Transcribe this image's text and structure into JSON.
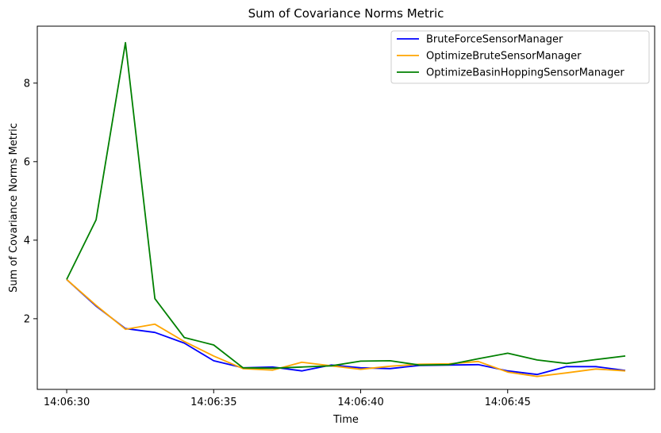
{
  "chart_data": {
    "type": "line",
    "title": "Sum of Covariance Norms Metric",
    "xlabel": "Time",
    "ylabel": "Sum of Covariance Norms Metric",
    "x": [
      "14:06:30",
      "14:06:31",
      "14:06:32",
      "14:06:33",
      "14:06:34",
      "14:06:35",
      "14:06:36",
      "14:06:37",
      "14:06:38",
      "14:06:39",
      "14:06:40",
      "14:06:41",
      "14:06:42",
      "14:06:43",
      "14:06:44",
      "14:06:45",
      "14:06:46",
      "14:06:47",
      "14:06:48",
      "14:06:49"
    ],
    "xticks": [
      "14:06:30",
      "14:06:35",
      "14:06:40",
      "14:06:45"
    ],
    "xlim": [
      "14:06:29",
      "14:06:50"
    ],
    "yticks": [
      2,
      4,
      6,
      8
    ],
    "ylim": [
      0.2,
      9.45
    ],
    "grid": false,
    "legend_position": "top-right",
    "series": [
      {
        "name": "BruteForceSensorManager",
        "color": "#0000ff",
        "values": [
          3.0,
          2.32,
          1.75,
          1.65,
          1.38,
          0.93,
          0.75,
          0.77,
          0.67,
          0.82,
          0.75,
          0.73,
          0.81,
          0.82,
          0.83,
          0.67,
          0.58,
          0.78,
          0.78,
          0.68
        ]
      },
      {
        "name": "OptimizeBruteSensorManager",
        "color": "#ffa500",
        "values": [
          3.0,
          2.34,
          1.73,
          1.86,
          1.42,
          1.05,
          0.73,
          0.69,
          0.89,
          0.8,
          0.71,
          0.79,
          0.84,
          0.85,
          0.91,
          0.64,
          0.53,
          0.62,
          0.72,
          0.67
        ]
      },
      {
        "name": "OptimizeBasinHoppingSensorManager",
        "color": "#008000",
        "values": [
          3.0,
          4.52,
          9.03,
          2.51,
          1.52,
          1.33,
          0.75,
          0.74,
          0.77,
          0.8,
          0.92,
          0.93,
          0.82,
          0.83,
          0.98,
          1.12,
          0.95,
          0.86,
          0.96,
          1.05
        ]
      }
    ]
  }
}
